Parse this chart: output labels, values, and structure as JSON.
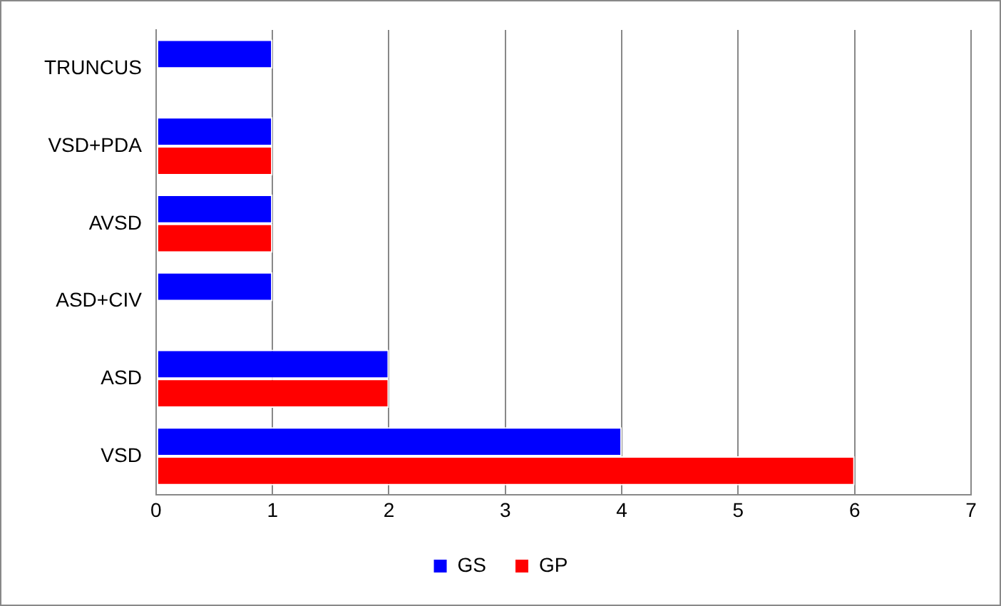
{
  "chart_data": {
    "type": "bar",
    "orientation": "horizontal",
    "categories": [
      "TRUNCUS",
      "VSD+PDA",
      "AVSD",
      "ASD+CIV",
      "ASD",
      "VSD"
    ],
    "series": [
      {
        "name": "GS",
        "color": "#0000ff",
        "values": [
          1,
          1,
          1,
          1,
          2,
          4
        ]
      },
      {
        "name": "GP",
        "color": "#ff0000",
        "values": [
          null,
          1,
          1,
          null,
          2,
          6
        ]
      }
    ],
    "xlim": [
      0,
      7
    ],
    "xticks": [
      0,
      1,
      2,
      3,
      4,
      5,
      6,
      7
    ],
    "grid": "x",
    "legend": "bottom"
  }
}
